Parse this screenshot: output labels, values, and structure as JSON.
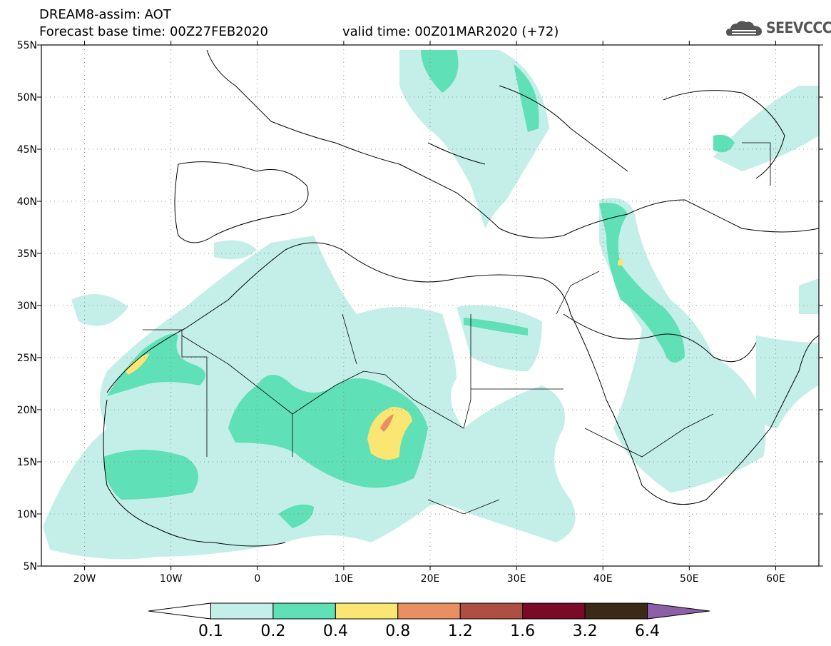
{
  "title": {
    "line1": "DREAM8-assim: AOT",
    "base": "Forecast base time: 00Z27FEB2020",
    "valid": "valid time: 00Z01MAR2020 (+72)"
  },
  "logo": {
    "text": "SEEVCCC",
    "icon": "cloud-icon"
  },
  "map": {
    "lon_range": [
      -25,
      65
    ],
    "lat_range": [
      5,
      55
    ],
    "lon_ticks": [
      "20W",
      "10W",
      "0",
      "10E",
      "20E",
      "30E",
      "40E",
      "50E",
      "60E"
    ],
    "lat_ticks": [
      "55N",
      "50N",
      "45N",
      "40N",
      "35N",
      "30N",
      "25N",
      "20N",
      "15N",
      "10N",
      "5N"
    ],
    "grid": "dotted"
  },
  "colorbar": {
    "labels": [
      "0.1",
      "0.2",
      "0.4",
      "0.8",
      "1.2",
      "1.6",
      "3.2",
      "6.4"
    ],
    "colors": [
      "#ffffff",
      "#c3efe8",
      "#5fe0b6",
      "#f9e673",
      "#e99063",
      "#af4f42",
      "#7b0a26",
      "#3b2a18",
      "#8b60a7"
    ]
  }
}
